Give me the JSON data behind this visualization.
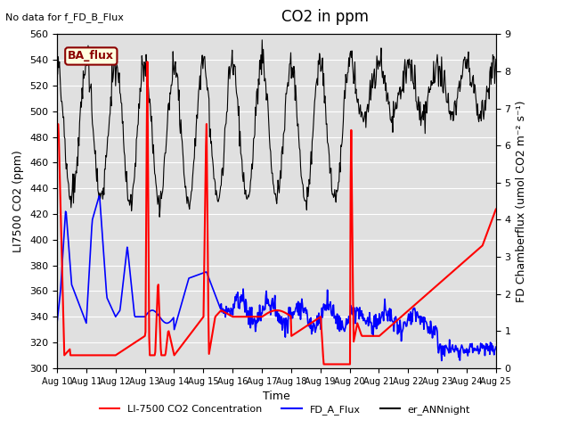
{
  "title": "CO2 in ppm",
  "no_data_text": "No data for f_FD_B_Flux",
  "xlabel": "Time",
  "ylabel_left": "LI7500 CO2 (ppm)",
  "ylabel_right": "FD Chamberflux (umol CO2 m-2 s-1)",
  "ylim_left": [
    300,
    560
  ],
  "ylim_right": [
    0.0,
    9.0
  ],
  "yticks_left": [
    300,
    320,
    340,
    360,
    380,
    400,
    420,
    440,
    460,
    480,
    500,
    520,
    540,
    560
  ],
  "yticks_right": [
    0.0,
    1.0,
    2.0,
    3.0,
    4.0,
    5.0,
    6.0,
    7.0,
    8.0,
    9.0
  ],
  "xtick_labels": [
    "Aug 10",
    "Aug 11",
    "Aug 12",
    "Aug 13",
    "Aug 14",
    "Aug 15",
    "Aug 16",
    "Aug 17",
    "Aug 18",
    "Aug 19",
    "Aug 20",
    "Aug 21",
    "Aug 22",
    "Aug 23",
    "Aug 24",
    "Aug 25"
  ],
  "annotation_box_text": "BA_flux",
  "legend_entries": [
    "LI-7500 CO2 Concentration",
    "FD_A_Flux",
    "er_ANNnight"
  ],
  "line_red_color": "red",
  "line_blue_color": "blue",
  "line_black_color": "black",
  "bg_color": "#e0e0e0"
}
